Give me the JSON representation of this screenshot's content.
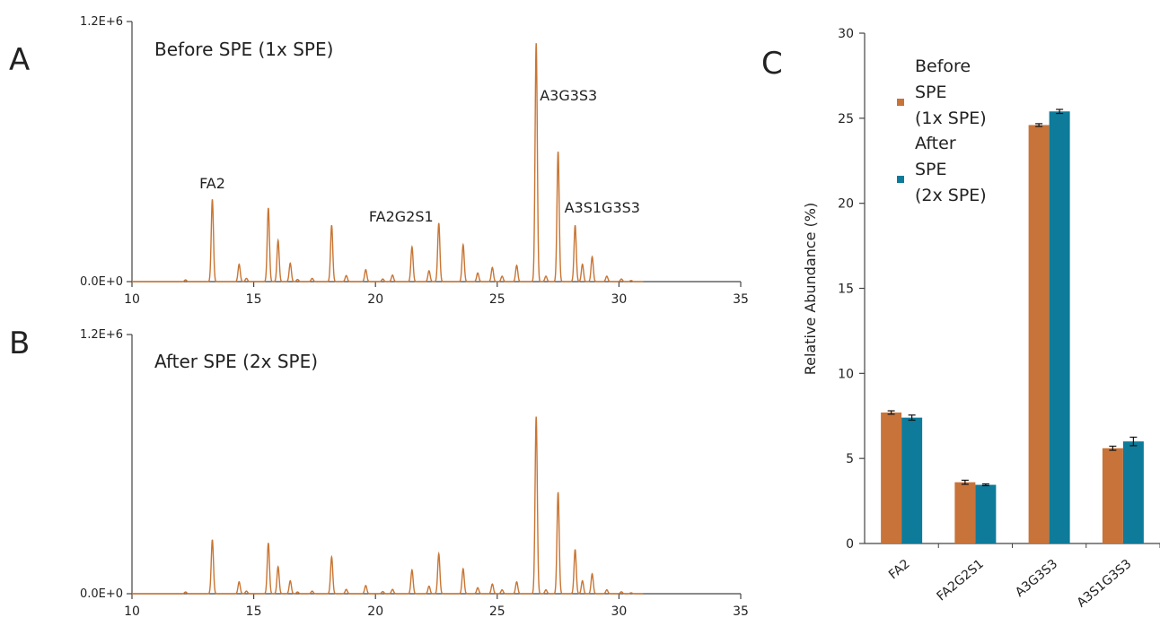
{
  "chart_data": [
    {
      "panel": "A",
      "type": "line",
      "title": "Before SPE (1x SPE)",
      "xlim": [
        10,
        35
      ],
      "ylim": [
        0,
        1200000
      ],
      "x_ticks": [
        10,
        15,
        20,
        25,
        30,
        35
      ],
      "y_tick_labels": [
        "0.0E+0",
        "1.2E+6"
      ],
      "line_color": "#C87533",
      "peaks": [
        {
          "x": 12.2,
          "y": 8000
        },
        {
          "x": 13.3,
          "y": 380000
        },
        {
          "x": 14.4,
          "y": 80000
        },
        {
          "x": 14.7,
          "y": 15000
        },
        {
          "x": 15.6,
          "y": 340000
        },
        {
          "x": 16.0,
          "y": 190000
        },
        {
          "x": 16.5,
          "y": 85000
        },
        {
          "x": 16.8,
          "y": 10000
        },
        {
          "x": 17.4,
          "y": 15000
        },
        {
          "x": 18.2,
          "y": 260000
        },
        {
          "x": 18.8,
          "y": 28000
        },
        {
          "x": 19.6,
          "y": 55000
        },
        {
          "x": 20.3,
          "y": 12000
        },
        {
          "x": 20.7,
          "y": 30000
        },
        {
          "x": 21.5,
          "y": 160000
        },
        {
          "x": 22.2,
          "y": 50000
        },
        {
          "x": 22.6,
          "y": 270000
        },
        {
          "x": 23.6,
          "y": 170000
        },
        {
          "x": 24.2,
          "y": 40000
        },
        {
          "x": 24.8,
          "y": 65000
        },
        {
          "x": 25.2,
          "y": 25000
        },
        {
          "x": 25.8,
          "y": 75000
        },
        {
          "x": 26.6,
          "y": 1100000
        },
        {
          "x": 27.0,
          "y": 25000
        },
        {
          "x": 27.5,
          "y": 600000
        },
        {
          "x": 28.2,
          "y": 260000
        },
        {
          "x": 28.5,
          "y": 80000
        },
        {
          "x": 28.9,
          "y": 115000
        },
        {
          "x": 29.5,
          "y": 25000
        },
        {
          "x": 30.1,
          "y": 12000
        },
        {
          "x": 30.5,
          "y": 5000
        }
      ],
      "annotations": [
        {
          "text": "FA2",
          "x": 13.3
        },
        {
          "text": "FA2G2S1",
          "x": 21.9
        },
        {
          "text": "A3G3S3",
          "x": 26.6
        },
        {
          "text": "A3S1G3S3",
          "x": 28.2
        }
      ]
    },
    {
      "panel": "B",
      "type": "line",
      "title": "After SPE (2x SPE)",
      "xlim": [
        10,
        35
      ],
      "ylim": [
        0,
        1200000
      ],
      "x_ticks": [
        10,
        15,
        20,
        25,
        30,
        35
      ],
      "y_tick_labels": [
        "0.0E+0",
        "1.2E+6"
      ],
      "line_color": "#C87533",
      "peaks": [
        {
          "x": 12.2,
          "y": 8000
        },
        {
          "x": 13.3,
          "y": 250000
        },
        {
          "x": 14.4,
          "y": 55000
        },
        {
          "x": 14.7,
          "y": 12000
        },
        {
          "x": 15.6,
          "y": 235000
        },
        {
          "x": 16.0,
          "y": 125000
        },
        {
          "x": 16.5,
          "y": 60000
        },
        {
          "x": 16.8,
          "y": 8000
        },
        {
          "x": 17.4,
          "y": 12000
        },
        {
          "x": 18.2,
          "y": 170000
        },
        {
          "x": 18.8,
          "y": 20000
        },
        {
          "x": 19.6,
          "y": 38000
        },
        {
          "x": 20.3,
          "y": 10000
        },
        {
          "x": 20.7,
          "y": 20000
        },
        {
          "x": 21.5,
          "y": 110000
        },
        {
          "x": 22.2,
          "y": 35000
        },
        {
          "x": 22.6,
          "y": 185000
        },
        {
          "x": 23.6,
          "y": 115000
        },
        {
          "x": 24.2,
          "y": 28000
        },
        {
          "x": 24.8,
          "y": 45000
        },
        {
          "x": 25.2,
          "y": 18000
        },
        {
          "x": 25.8,
          "y": 55000
        },
        {
          "x": 26.6,
          "y": 820000
        },
        {
          "x": 27.0,
          "y": 18000
        },
        {
          "x": 27.5,
          "y": 470000
        },
        {
          "x": 28.2,
          "y": 205000
        },
        {
          "x": 28.5,
          "y": 60000
        },
        {
          "x": 28.9,
          "y": 92000
        },
        {
          "x": 29.5,
          "y": 18000
        },
        {
          "x": 30.1,
          "y": 9000
        },
        {
          "x": 30.5,
          "y": 4000
        }
      ]
    },
    {
      "panel": "C",
      "type": "bar",
      "ylabel": "Relative Abundance (%)",
      "ylim": [
        0,
        30
      ],
      "y_ticks": [
        0,
        5,
        10,
        15,
        20,
        25,
        30
      ],
      "categories": [
        "FA2",
        "FA2G2S1",
        "A3G3S3",
        "A3S1G3S3"
      ],
      "series": [
        {
          "name": "Before SPE (1x SPE)",
          "name_lines": [
            "Before",
            "SPE",
            "(1x SPE)"
          ],
          "color": "#C8733A",
          "values": [
            7.7,
            3.6,
            24.6,
            5.6
          ],
          "errors": [
            0.1,
            0.12,
            0.08,
            0.12
          ]
        },
        {
          "name": "After SPE (2x SPE)",
          "name_lines": [
            "After",
            "SPE",
            "(2x SPE)"
          ],
          "color": "#0E7B9A",
          "values": [
            7.4,
            3.45,
            25.4,
            6.0
          ],
          "errors": [
            0.15,
            0.05,
            0.12,
            0.25
          ]
        }
      ],
      "legend": "top-left"
    }
  ],
  "panel_labels": [
    "A",
    "B",
    "C"
  ]
}
